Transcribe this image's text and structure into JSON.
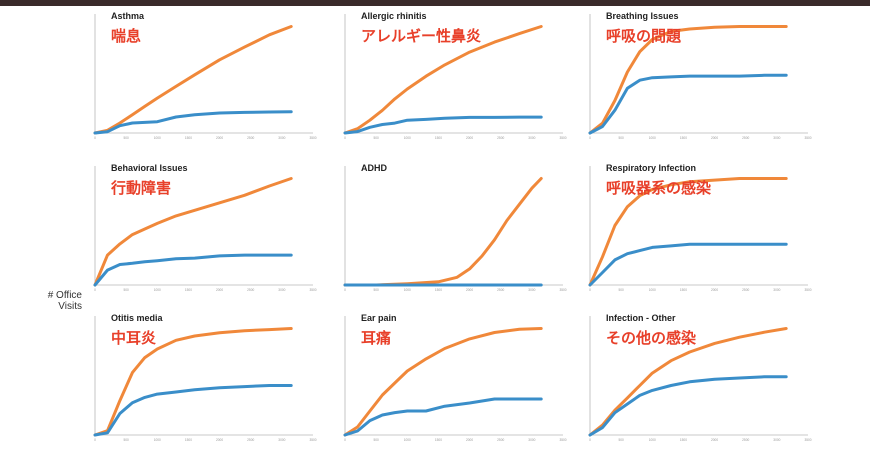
{
  "y_axis_label": [
    "# Office",
    "Visits"
  ],
  "colors": {
    "series_a": "#f0883a",
    "series_b": "#3a8ec9",
    "axis": "#b8b8b8",
    "japanese_title": "#e8402a"
  },
  "x_ticks": [
    "0",
    "500",
    "1000",
    "1500",
    "2000",
    "2500",
    "3000",
    "3500"
  ],
  "chart_data": [
    {
      "type": "line",
      "title": "Asthma",
      "subtitle": "喘息",
      "x": [
        0,
        200,
        400,
        600,
        800,
        1000,
        1300,
        1600,
        2000,
        2400,
        2800,
        3150
      ],
      "xlim": [
        0,
        3500
      ],
      "series": [
        {
          "values": [
            0,
            8,
            30,
            55,
            80,
            105,
            140,
            175,
            220,
            258,
            295,
            320
          ]
        },
        {
          "values": [
            0,
            4,
            22,
            30,
            32,
            34,
            48,
            55,
            60,
            62,
            63,
            64
          ]
        }
      ]
    },
    {
      "type": "line",
      "title": "Allergic rhinitis",
      "subtitle": "アレルギー性鼻炎",
      "x": [
        0,
        200,
        400,
        600,
        800,
        1000,
        1300,
        1600,
        2000,
        2400,
        2800,
        3150
      ],
      "xlim": [
        0,
        3500
      ],
      "series": [
        {
          "values": [
            0,
            15,
            45,
            80,
            120,
            155,
            200,
            240,
            285,
            320,
            350,
            375
          ]
        },
        {
          "values": [
            0,
            5,
            20,
            30,
            35,
            45,
            48,
            52,
            55,
            55,
            56,
            56
          ]
        }
      ]
    },
    {
      "type": "line",
      "title": "Breathing Issues",
      "subtitle": "呼吸の問題",
      "x": [
        0,
        200,
        400,
        600,
        800,
        1000,
        1300,
        1600,
        2000,
        2400,
        2800,
        3150
      ],
      "xlim": [
        0,
        3500
      ],
      "series": [
        {
          "values": [
            0,
            12,
            40,
            75,
            100,
            115,
            125,
            128,
            130,
            131,
            131,
            131
          ]
        },
        {
          "values": [
            0,
            8,
            28,
            55,
            65,
            68,
            69,
            70,
            70,
            70,
            71,
            71
          ]
        }
      ]
    },
    {
      "type": "line",
      "title": "Behavioral Issues",
      "subtitle": "行動障害",
      "x": [
        0,
        200,
        400,
        600,
        800,
        1000,
        1300,
        1600,
        2000,
        2400,
        2800,
        3150
      ],
      "xlim": [
        0,
        3500
      ],
      "series": [
        {
          "values": [
            0,
            80,
            110,
            135,
            150,
            165,
            185,
            200,
            220,
            240,
            265,
            285
          ]
        },
        {
          "values": [
            0,
            40,
            55,
            58,
            62,
            65,
            70,
            72,
            78,
            80,
            80,
            80
          ]
        }
      ]
    },
    {
      "type": "line",
      "title": "ADHD",
      "subtitle": "",
      "x": [
        0,
        500,
        1000,
        1500,
        1800,
        2000,
        2200,
        2400,
        2600,
        2800,
        3000,
        3150
      ],
      "xlim": [
        0,
        3500
      ],
      "series": [
        {
          "values": [
            0,
            0,
            2,
            5,
            12,
            25,
            45,
            70,
            100,
            125,
            150,
            165
          ]
        },
        {
          "values": [
            0,
            0,
            0,
            0,
            0,
            0,
            0,
            0,
            0,
            0,
            0,
            0
          ]
        }
      ]
    },
    {
      "type": "line",
      "title": "Respiratory Infection",
      "subtitle": "呼吸器系の感染",
      "x": [
        0,
        200,
        400,
        600,
        800,
        1000,
        1300,
        1600,
        2000,
        2400,
        2800,
        3150
      ],
      "xlim": [
        0,
        3500
      ],
      "series": [
        {
          "values": [
            0,
            18,
            38,
            50,
            57,
            61,
            64,
            66,
            67,
            68,
            68,
            68
          ]
        },
        {
          "values": [
            0,
            8,
            16,
            20,
            22,
            24,
            25,
            26,
            26,
            26,
            26,
            26
          ]
        }
      ]
    },
    {
      "type": "line",
      "title": "Otitis media",
      "subtitle": "中耳炎",
      "x": [
        0,
        200,
        400,
        600,
        800,
        1000,
        1300,
        1600,
        2000,
        2400,
        2800,
        3150
      ],
      "xlim": [
        0,
        3500
      ],
      "series": [
        {
          "values": [
            0,
            4,
            32,
            58,
            72,
            80,
            88,
            92,
            95,
            97,
            98,
            99
          ]
        },
        {
          "values": [
            0,
            2,
            20,
            30,
            35,
            38,
            40,
            42,
            44,
            45,
            46,
            46
          ]
        }
      ]
    },
    {
      "type": "line",
      "title": "Ear pain",
      "subtitle": "耳痛",
      "x": [
        0,
        200,
        400,
        600,
        800,
        1000,
        1300,
        1600,
        2000,
        2400,
        2800,
        3150
      ],
      "xlim": [
        0,
        3500
      ],
      "series": [
        {
          "values": [
            0,
            10,
            30,
            50,
            65,
            80,
            95,
            108,
            120,
            128,
            132,
            133
          ]
        },
        {
          "values": [
            0,
            5,
            18,
            25,
            28,
            30,
            30,
            36,
            40,
            45,
            45,
            45
          ]
        }
      ]
    },
    {
      "type": "line",
      "title": "Infection - Other",
      "subtitle": "その他の感染",
      "x": [
        0,
        200,
        400,
        600,
        800,
        1000,
        1300,
        1600,
        2000,
        2400,
        2800,
        3150
      ],
      "xlim": [
        0,
        3500
      ],
      "series": [
        {
          "values": [
            0,
            8,
            20,
            30,
            40,
            50,
            60,
            67,
            74,
            79,
            83,
            86
          ]
        },
        {
          "values": [
            0,
            6,
            18,
            25,
            32,
            36,
            40,
            43,
            45,
            46,
            47,
            47
          ]
        }
      ]
    }
  ]
}
